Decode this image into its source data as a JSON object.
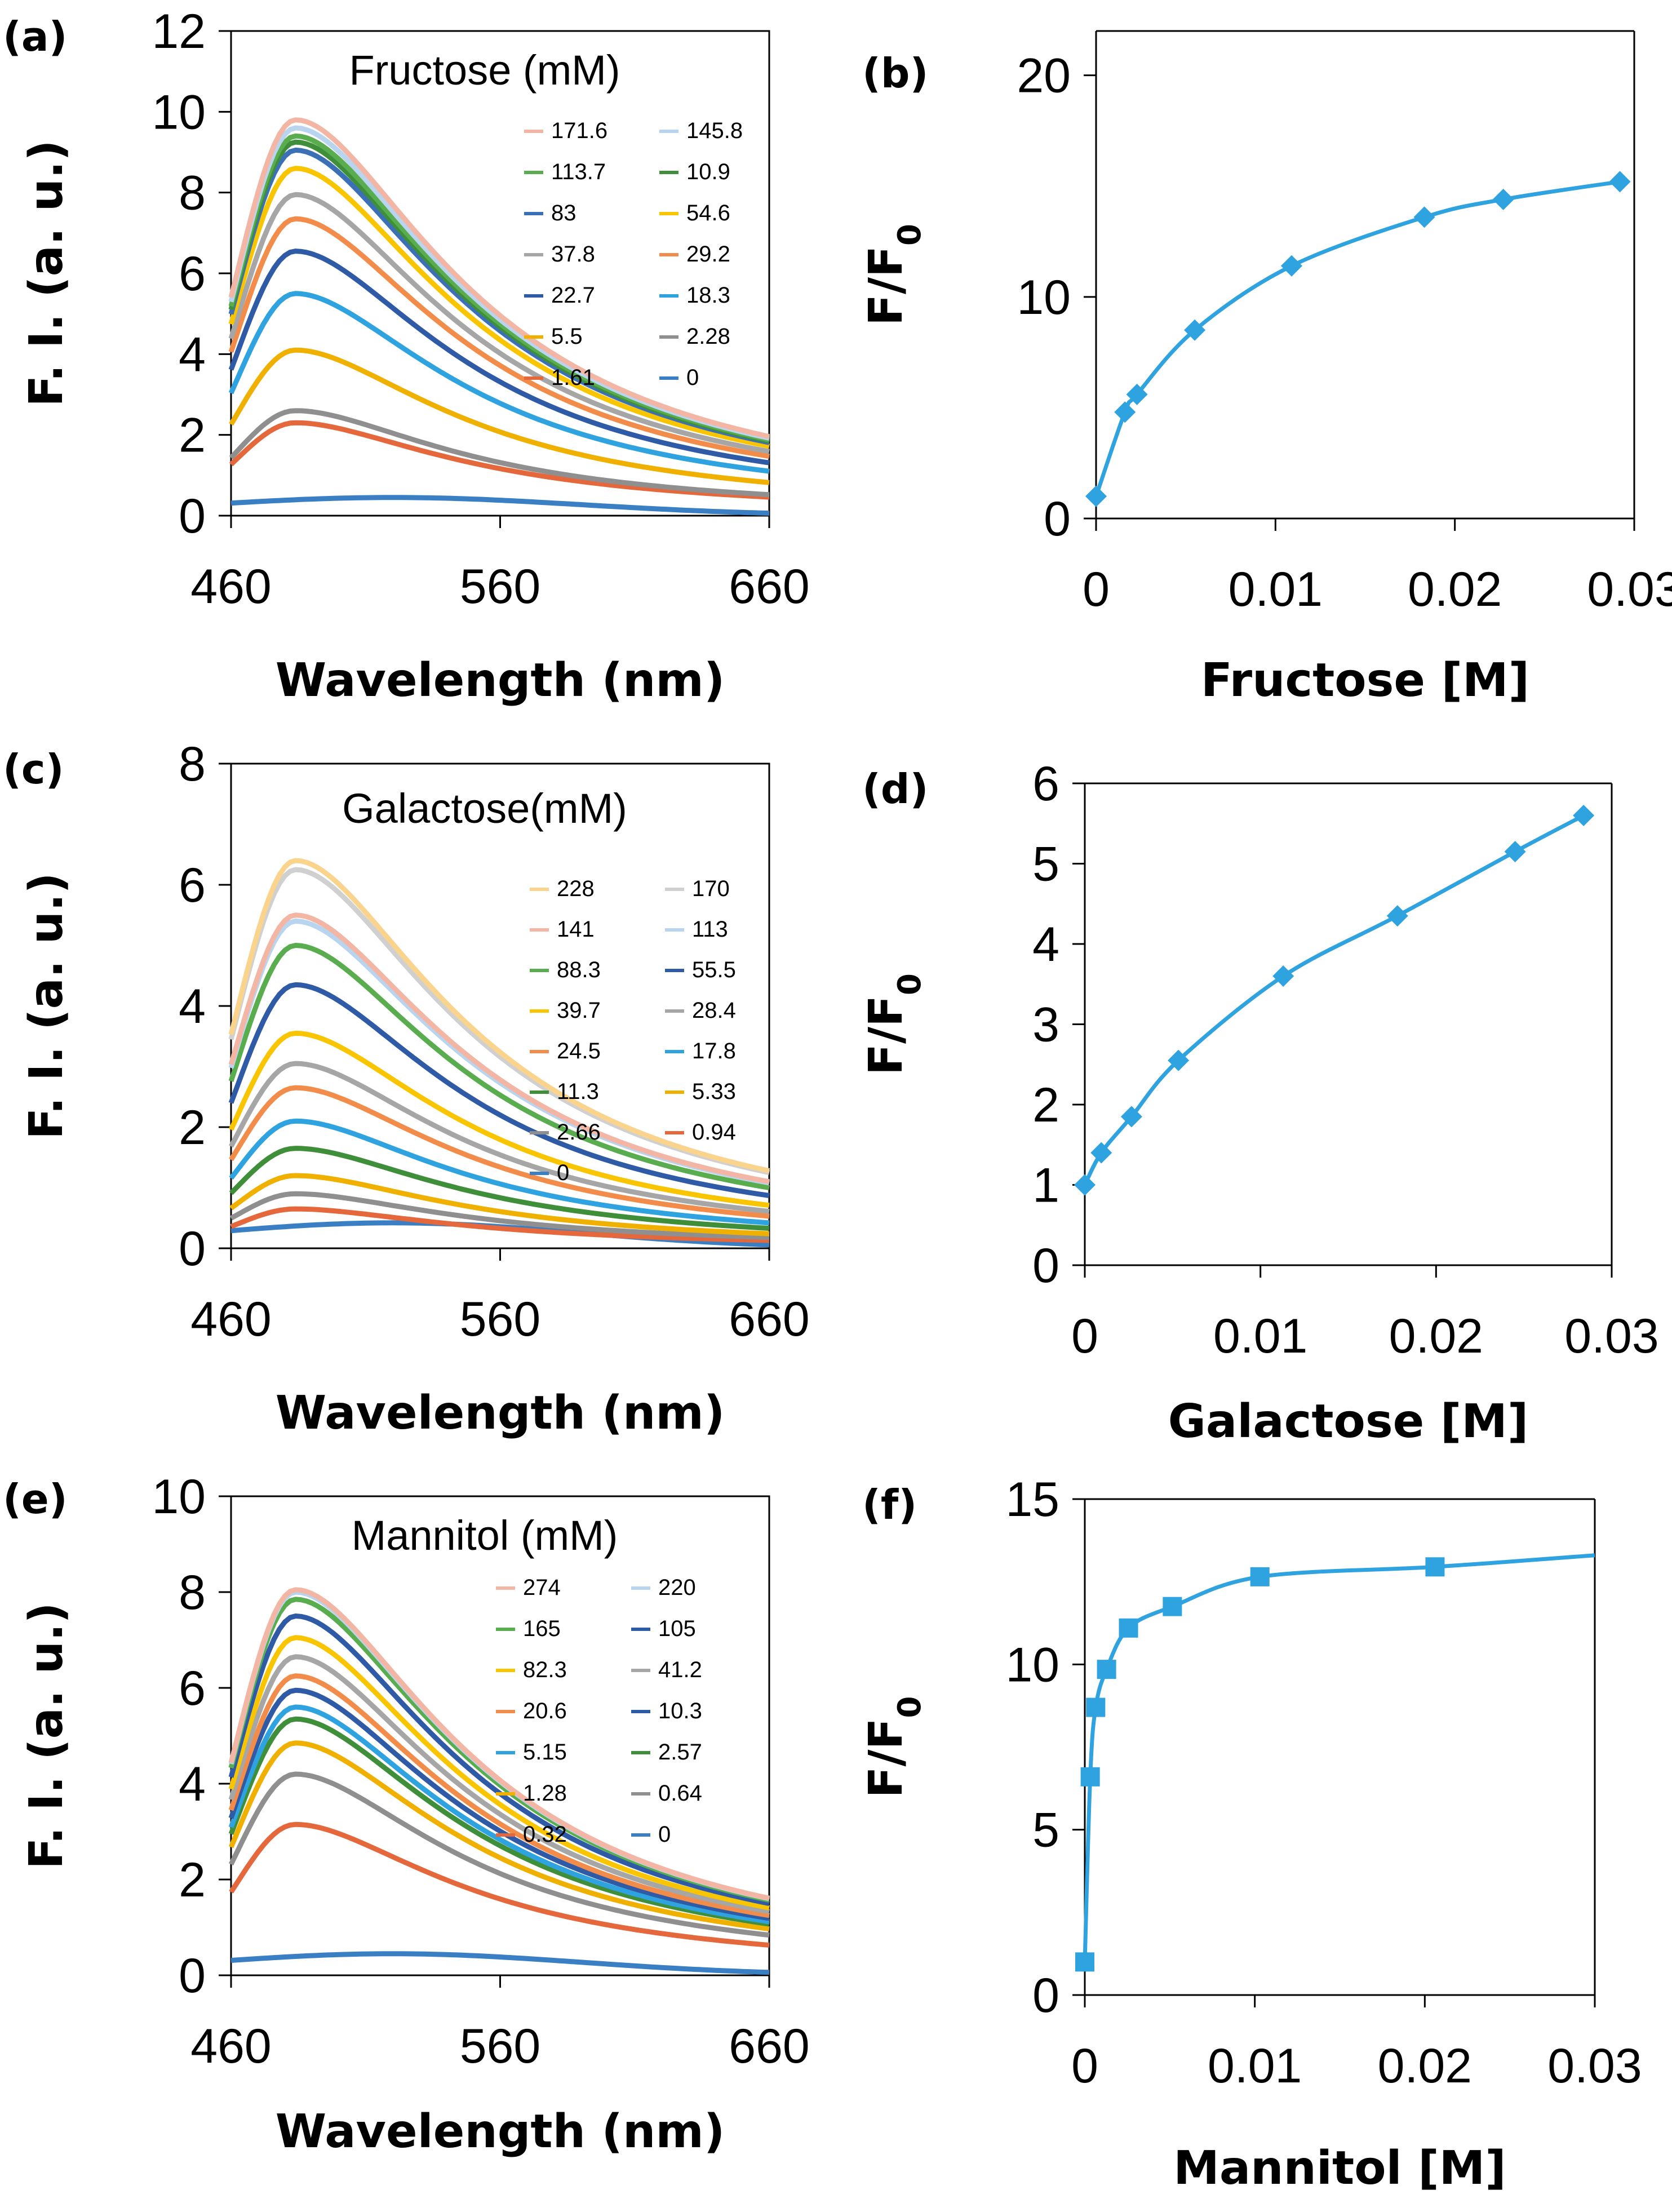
{
  "chart_data": [
    {
      "id": "a",
      "panel_label": "(a)",
      "type": "line",
      "title": "Fructose (mM)",
      "xlabel": "Wavelength (nm)",
      "ylabel": "F. I. (a. u.)",
      "xlim": [
        460,
        660
      ],
      "ylim": [
        0,
        12
      ],
      "xticks": [
        460,
        560,
        660
      ],
      "yticks": [
        0,
        2,
        4,
        6,
        8,
        10,
        12
      ],
      "grid": false,
      "legend": "top-right, two columns",
      "series": [
        {
          "name": "171.6",
          "color": "#f4b6a4",
          "peak": 9.8
        },
        {
          "name": "145.8",
          "color": "#b8d4ee",
          "peak": 9.6
        },
        {
          "name": "113.7",
          "color": "#5aad4e",
          "peak": 9.4
        },
        {
          "name": "10.9",
          "color": "#3f8f3a",
          "peak": 9.25
        },
        {
          "name": "83",
          "color": "#3b6fb6",
          "peak": 9.05
        },
        {
          "name": "54.6",
          "color": "#f9c400",
          "peak": 8.6
        },
        {
          "name": "37.8",
          "color": "#a6a6a6",
          "peak": 7.95
        },
        {
          "name": "29.2",
          "color": "#f28c4a",
          "peak": 7.35
        },
        {
          "name": "22.7",
          "color": "#2f5aa6",
          "peak": 6.55
        },
        {
          "name": "18.3",
          "color": "#2ea3e0",
          "peak": 5.5
        },
        {
          "name": "5.5",
          "color": "#f0b000",
          "peak": 4.1
        },
        {
          "name": "2.28",
          "color": "#8f8f8f",
          "peak": 2.6
        },
        {
          "name": "1.61",
          "color": "#e4683c",
          "peak": 2.3
        },
        {
          "name": "0",
          "color": "#3a7fc4",
          "peak": 0.45
        }
      ]
    },
    {
      "id": "b",
      "panel_label": "(b)",
      "type": "line",
      "xlabel": "Fructose [M]",
      "ylabel": "F/F",
      "ylabel_sub": "0",
      "xlim": [
        0,
        0.03
      ],
      "ylim": [
        0,
        22
      ],
      "xticks": [
        0,
        0.01,
        0.02,
        0.03
      ],
      "xtick_labels": [
        "0",
        "0.01",
        "0.02",
        "0.03"
      ],
      "yticks": [
        0,
        10,
        20
      ],
      "grid": false,
      "marker": "diamond",
      "series": [
        {
          "name": "F/F0",
          "color": "#2ea3e0",
          "x": [
            0,
            0.00161,
            0.00228,
            0.0055,
            0.0109,
            0.0183,
            0.0227,
            0.0292
          ],
          "y": [
            1.0,
            4.8,
            5.6,
            8.5,
            11.4,
            13.6,
            14.4,
            15.2
          ]
        }
      ]
    },
    {
      "id": "c",
      "panel_label": "(c)",
      "type": "line",
      "title": "Galactose(mM)",
      "xlabel": "Wavelength (nm)",
      "ylabel": "F. I. (a. u.)",
      "xlim": [
        460,
        660
      ],
      "ylim": [
        0,
        8
      ],
      "xticks": [
        460,
        560,
        660
      ],
      "yticks": [
        0,
        2,
        4,
        6,
        8
      ],
      "grid": false,
      "legend": "top-right, two columns",
      "series": [
        {
          "name": "228",
          "color": "#fad48c",
          "peak": 6.4
        },
        {
          "name": "170",
          "color": "#d0d0d0",
          "peak": 6.25
        },
        {
          "name": "141",
          "color": "#f4b6a4",
          "peak": 5.5
        },
        {
          "name": "113",
          "color": "#b8d4ee",
          "peak": 5.4
        },
        {
          "name": "88.3",
          "color": "#5aad4e",
          "peak": 5.0
        },
        {
          "name": "55.5",
          "color": "#2f5aa6",
          "peak": 4.35
        },
        {
          "name": "39.7",
          "color": "#f9c400",
          "peak": 3.55
        },
        {
          "name": "28.4",
          "color": "#a6a6a6",
          "peak": 3.05
        },
        {
          "name": "24.5",
          "color": "#f28c4a",
          "peak": 2.65
        },
        {
          "name": "17.8",
          "color": "#2ea3e0",
          "peak": 2.1
        },
        {
          "name": "11.3",
          "color": "#3f8f3a",
          "peak": 1.65
        },
        {
          "name": "5.33",
          "color": "#f0b000",
          "peak": 1.2
        },
        {
          "name": "2.66",
          "color": "#8f8f8f",
          "peak": 0.9
        },
        {
          "name": "0.94",
          "color": "#e4683c",
          "peak": 0.65
        },
        {
          "name": "0",
          "color": "#3a7fc4",
          "peak": 0.42
        }
      ]
    },
    {
      "id": "d",
      "panel_label": "(d)",
      "type": "line",
      "xlabel": "Galactose [M]",
      "ylabel": "F/F",
      "ylabel_sub": "0",
      "xlim": [
        0,
        0.03
      ],
      "ylim": [
        0,
        6
      ],
      "xticks": [
        0,
        0.01,
        0.02,
        0.03
      ],
      "xtick_labels": [
        "0",
        "0.01",
        "0.02",
        "0.03"
      ],
      "yticks": [
        0,
        1,
        2,
        3,
        4,
        5,
        6
      ],
      "grid": false,
      "marker": "diamond",
      "series": [
        {
          "name": "F/F0",
          "color": "#2ea3e0",
          "x": [
            0,
            0.00094,
            0.00266,
            0.00533,
            0.0113,
            0.0178,
            0.0245,
            0.0284
          ],
          "y": [
            1.0,
            1.4,
            1.85,
            2.55,
            3.6,
            4.35,
            5.15,
            5.6
          ]
        }
      ]
    },
    {
      "id": "e",
      "panel_label": "(e)",
      "type": "line",
      "title": "Mannitol (mM)",
      "xlabel": "Wavelength (nm)",
      "ylabel": "F. I. (a. u.)",
      "xlim": [
        460,
        660
      ],
      "ylim": [
        0,
        10
      ],
      "xticks": [
        460,
        560,
        660
      ],
      "yticks": [
        0,
        2,
        4,
        6,
        8,
        10
      ],
      "grid": false,
      "legend": "top-right, two columns",
      "series": [
        {
          "name": "274",
          "color": "#f4b6a4",
          "peak": 8.05
        },
        {
          "name": "220",
          "color": "#b8d4ee",
          "peak": 8.0
        },
        {
          "name": "165",
          "color": "#5aad4e",
          "peak": 7.85
        },
        {
          "name": "105",
          "color": "#2f5aa6",
          "peak": 7.5
        },
        {
          "name": "82.3",
          "color": "#f9c400",
          "peak": 7.05
        },
        {
          "name": "41.2",
          "color": "#a6a6a6",
          "peak": 6.65
        },
        {
          "name": "20.6",
          "color": "#f28c4a",
          "peak": 6.25
        },
        {
          "name": "10.3",
          "color": "#2f5aa6",
          "peak": 5.95
        },
        {
          "name": "5.15",
          "color": "#2ea3e0",
          "peak": 5.6
        },
        {
          "name": "2.57",
          "color": "#3f8f3a",
          "peak": 5.35
        },
        {
          "name": "1.28",
          "color": "#f0b000",
          "peak": 4.85
        },
        {
          "name": "0.64",
          "color": "#8f8f8f",
          "peak": 4.2
        },
        {
          "name": "0.32",
          "color": "#e4683c",
          "peak": 3.15
        },
        {
          "name": "0",
          "color": "#3a7fc4",
          "peak": 0.45
        }
      ]
    },
    {
      "id": "f",
      "panel_label": "(f)",
      "type": "line",
      "xlabel": "Mannitol [M]",
      "ylabel": "F/F",
      "ylabel_sub": "0",
      "xlim": [
        0,
        0.03
      ],
      "ylim": [
        0,
        15
      ],
      "xticks": [
        0,
        0.01,
        0.02,
        0.03
      ],
      "xtick_labels": [
        "0",
        "0.01",
        "0.02",
        "0.03"
      ],
      "yticks": [
        0,
        5,
        10,
        15
      ],
      "grid": false,
      "marker": "square",
      "series": [
        {
          "name": "F/F0",
          "color": "#2ea3e0",
          "x": [
            0,
            0.00032,
            0.00064,
            0.00128,
            0.00257,
            0.00515,
            0.0103,
            0.0206,
            0.03
          ],
          "y": [
            1.0,
            6.6,
            8.7,
            9.85,
            11.1,
            11.75,
            12.65,
            12.95,
            13.3
          ]
        }
      ]
    }
  ]
}
